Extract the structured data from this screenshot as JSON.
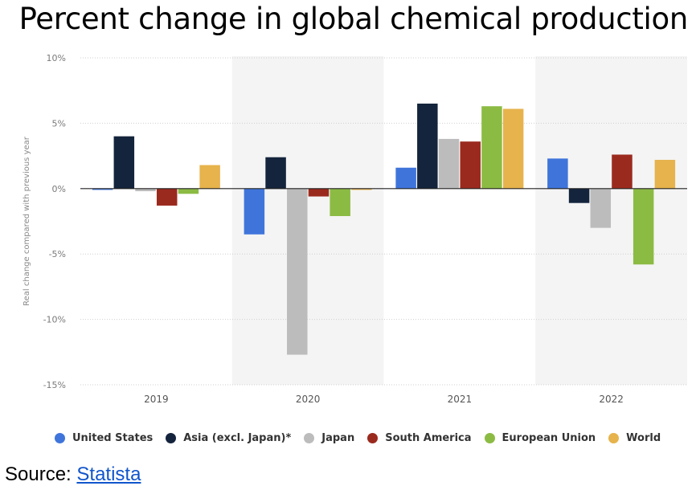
{
  "title": "Percent change in global chemical production",
  "source": {
    "prefix": "Source: ",
    "link_text": "Statista"
  },
  "chart_data": {
    "type": "bar",
    "title": "Percent change in global chemical production",
    "ylabel": "Real change compared with previous year",
    "xlabel": "",
    "categories": [
      "2019",
      "2020",
      "2021",
      "2022"
    ],
    "ylim": [
      -15,
      10
    ],
    "yticks": [
      10,
      5,
      0,
      -5,
      -10,
      -15
    ],
    "ytick_labels": [
      "10%",
      "5%",
      "0%",
      "-5%",
      "-10%",
      "-15%"
    ],
    "grid": true,
    "legend_position": "bottom",
    "series": [
      {
        "name": "United States",
        "color": "#3f75db",
        "values": [
          -0.1,
          -3.5,
          1.6,
          2.3
        ]
      },
      {
        "name": "Asia (excl. Japan)*",
        "color": "#14243c",
        "values": [
          4.0,
          2.4,
          6.5,
          -1.1
        ]
      },
      {
        "name": "Japan",
        "color": "#bcbcbc",
        "values": [
          -0.2,
          -12.7,
          3.8,
          -3.0
        ]
      },
      {
        "name": "South America",
        "color": "#9b2a1e",
        "values": [
          -1.3,
          -0.6,
          3.6,
          2.6
        ]
      },
      {
        "name": "European Union",
        "color": "#8cbb44",
        "values": [
          -0.4,
          -2.1,
          6.3,
          -5.8
        ]
      },
      {
        "name": "World",
        "color": "#e6b34c",
        "values": [
          1.8,
          -0.1,
          6.1,
          2.2
        ]
      }
    ]
  }
}
